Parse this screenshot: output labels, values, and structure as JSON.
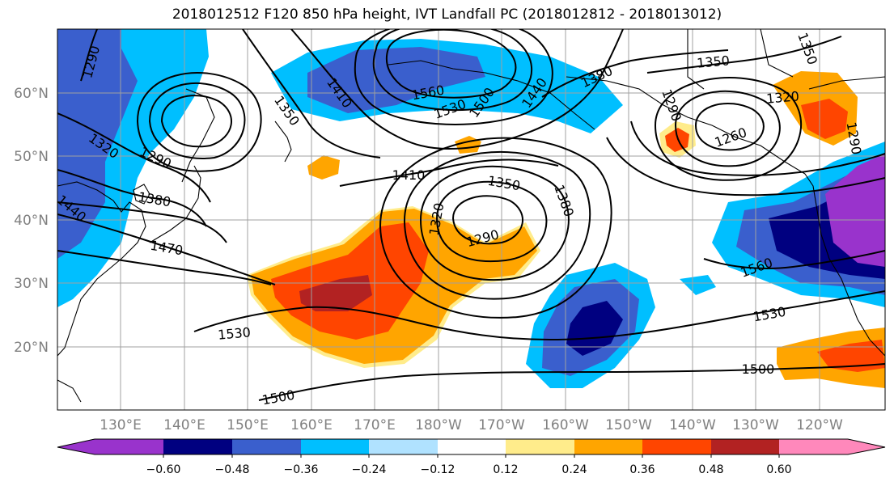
{
  "title": "2018012512 F120 850 hPa height, IVT Landfall PC (2018012812 - 2018013012)",
  "map": {
    "lat_labels": [
      "60°N",
      "50°N",
      "40°N",
      "30°N",
      "20°N"
    ],
    "lon_labels": [
      "130°E",
      "140°E",
      "150°E",
      "160°E",
      "170°E",
      "180°W",
      "170°W",
      "160°W",
      "150°W",
      "140°W",
      "130°W",
      "120°W"
    ],
    "contour_labels": [
      "1290",
      "1320",
      "1290",
      "1380",
      "1440",
      "1470",
      "1350",
      "1410",
      "1560",
      "1530",
      "1500",
      "1440",
      "1380",
      "1350",
      "1290",
      "1260",
      "1320",
      "1350",
      "1290",
      "1410",
      "1350",
      "1380",
      "1320",
      "1290",
      "1530",
      "1500",
      "1560",
      "1530",
      "1500"
    ]
  },
  "colorbar": {
    "tick_labels": [
      "−0.60",
      "−0.48",
      "−0.36",
      "−0.24",
      "−0.12",
      "0.12",
      "0.24",
      "0.36",
      "0.48",
      "0.60"
    ],
    "colors": [
      "#9933cc",
      "#000080",
      "#3a5fcd",
      "#00bfff",
      "#b0e2ff",
      "#ffffff",
      "#ffec8b",
      "#ffa500",
      "#ff4500",
      "#b22222",
      "#ff88bb"
    ]
  },
  "colors": {
    "contour": "#000000",
    "grid": "#a0a0a0",
    "coast": "#000000"
  }
}
